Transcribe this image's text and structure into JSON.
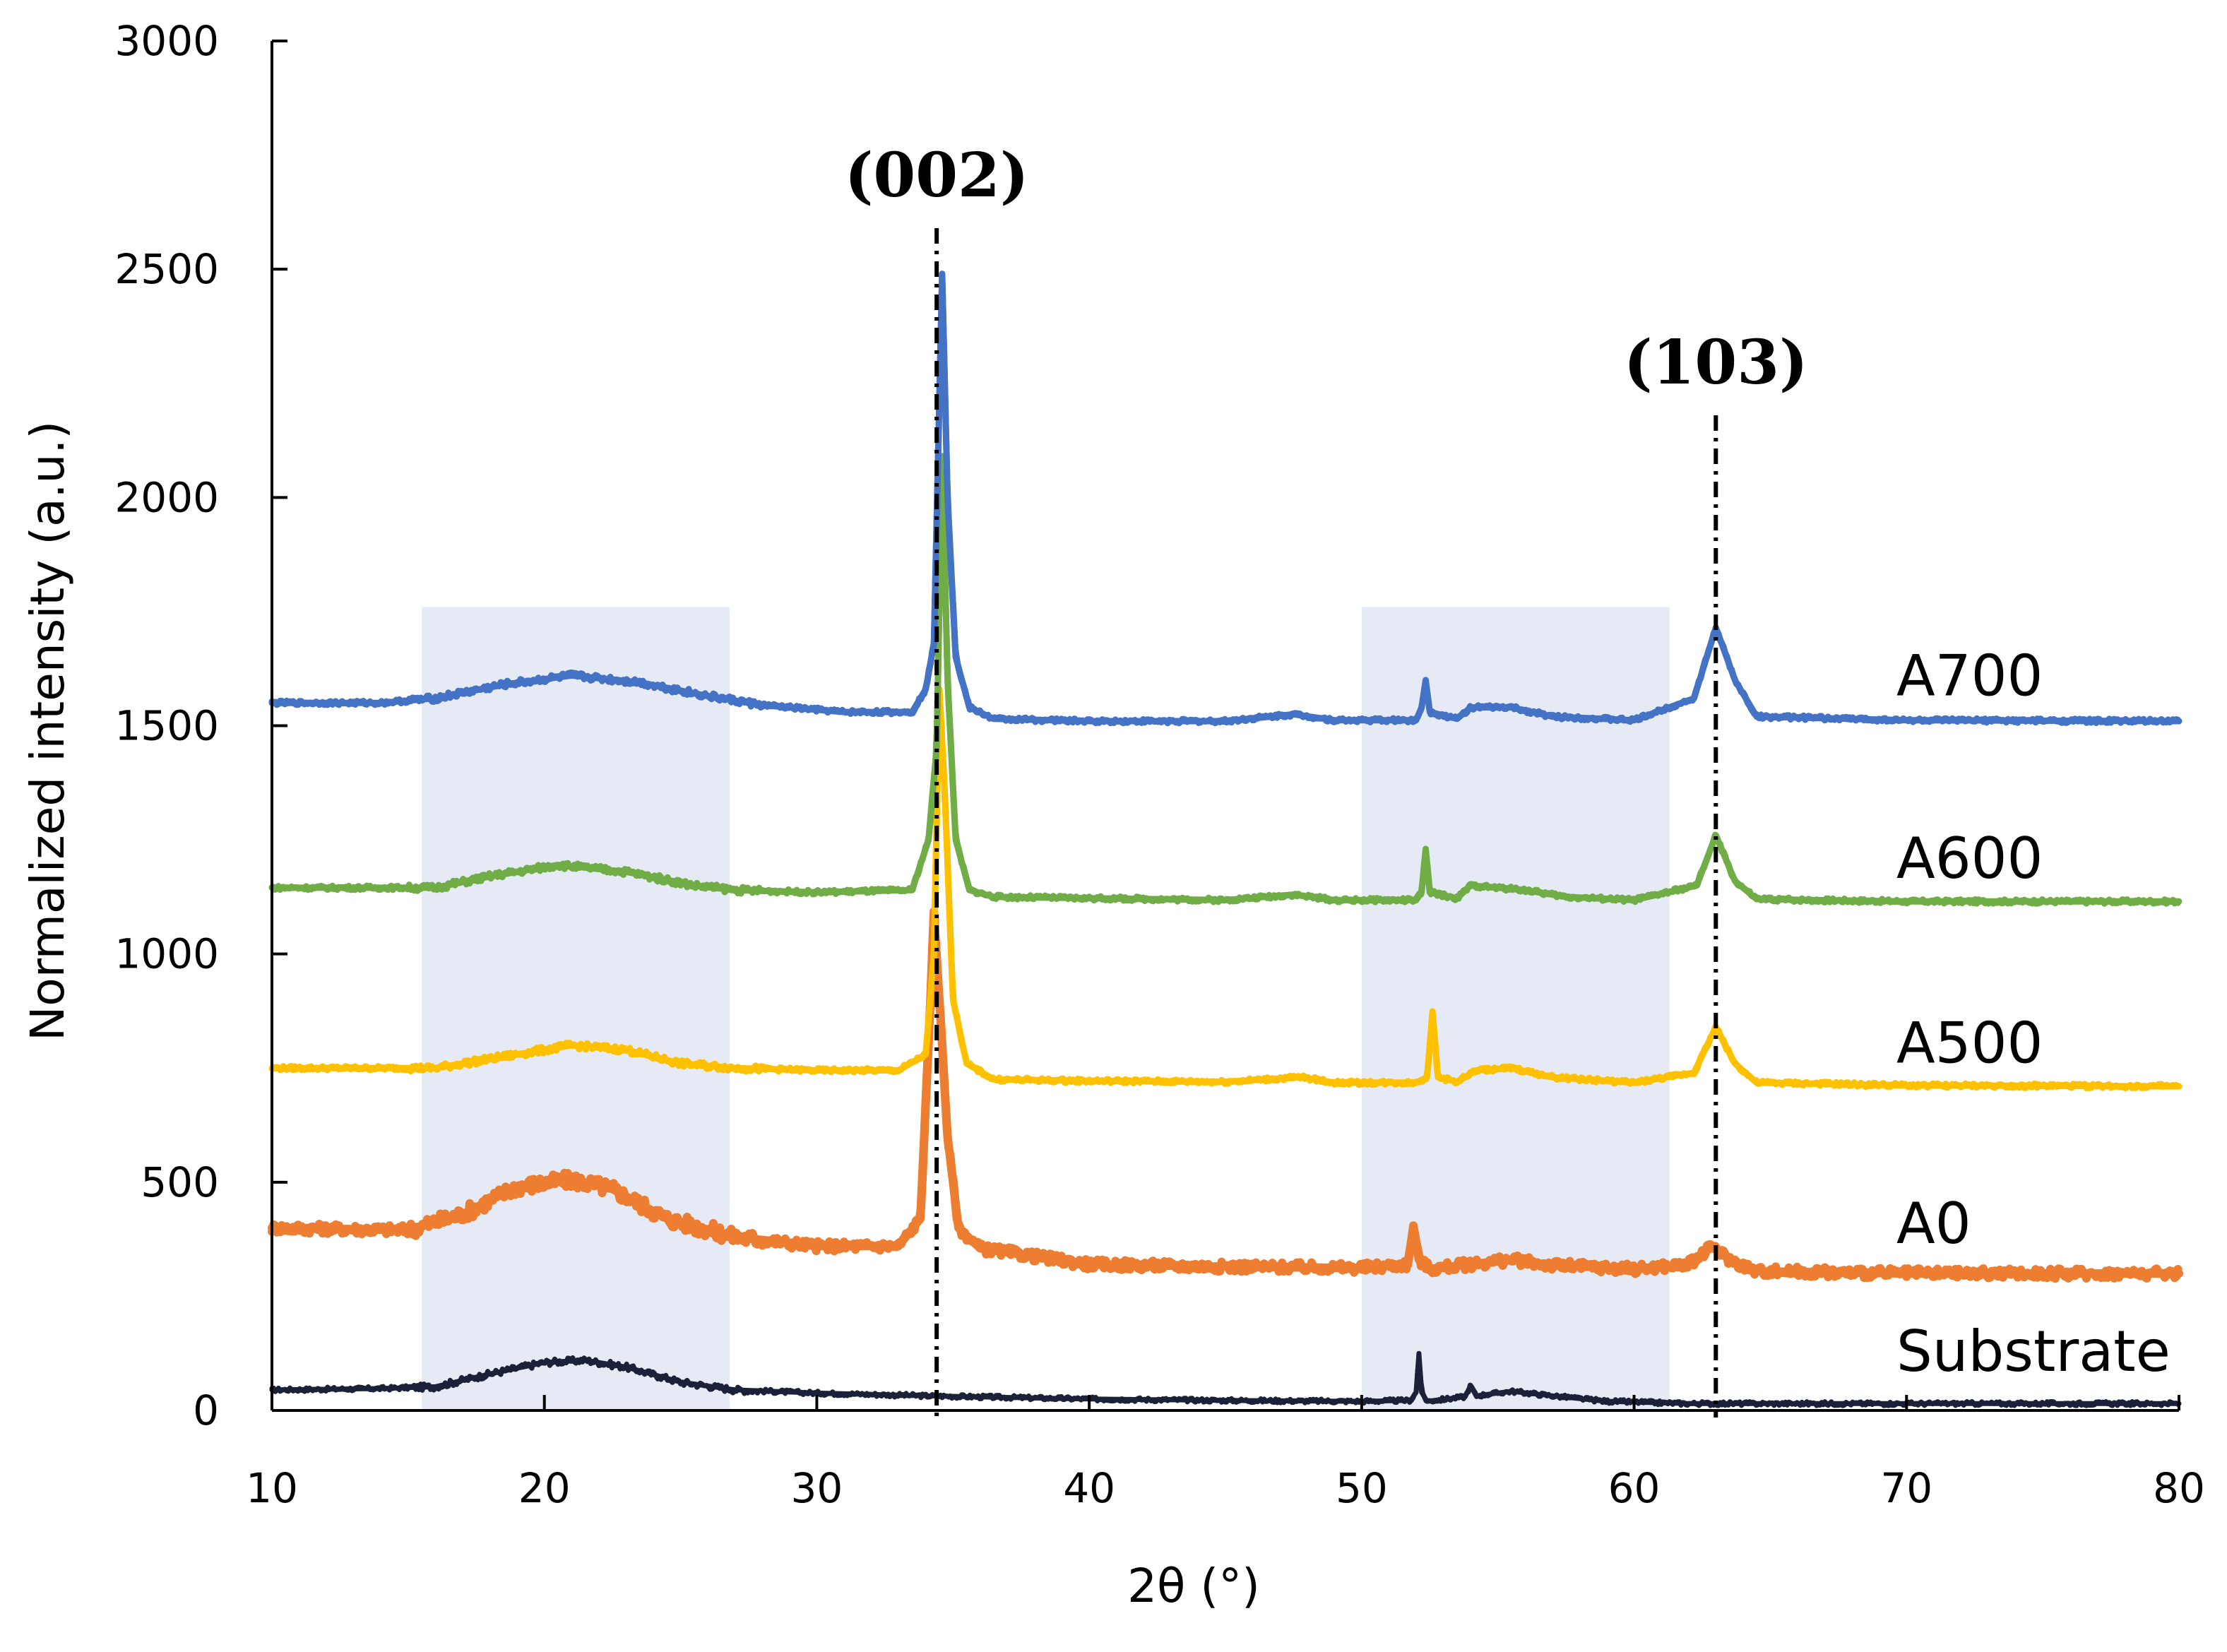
{
  "chart_data": {
    "type": "line",
    "title": "",
    "xlabel": "2θ (°)",
    "ylabel": "Normalized intensity (a.u.)",
    "xlim": [
      10,
      80
    ],
    "ylim": [
      0,
      3000
    ],
    "xticks": [
      "10",
      "20",
      "30",
      "40",
      "50",
      "60",
      "70",
      "80"
    ],
    "yticks": [
      "0",
      "500",
      "1000",
      "1500",
      "2000",
      "2500",
      "3000"
    ],
    "shaded_regions": [
      {
        "x0": 15.5,
        "x1": 26.8,
        "y0": 0,
        "y1": 1760
      },
      {
        "x0": 50.0,
        "x1": 61.3,
        "y0": 0,
        "y1": 1760
      }
    ],
    "reference_lines": [
      {
        "x": 34.4,
        "label": "(002)",
        "top": 2590
      },
      {
        "x": 63.0,
        "label": "(103)",
        "top": 2180
      }
    ],
    "series": [
      {
        "name": "Substrate",
        "label": "Substrate",
        "color": "#1b2138",
        "lw": 7,
        "label_y": 130,
        "points": [
          [
            10,
            45
          ],
          [
            14,
            48
          ],
          [
            16,
            52
          ],
          [
            18,
            80
          ],
          [
            20,
            105
          ],
          [
            21.5,
            110
          ],
          [
            23,
            95
          ],
          [
            25,
            62
          ],
          [
            27,
            45
          ],
          [
            30,
            38
          ],
          [
            34,
            32
          ],
          [
            40,
            25
          ],
          [
            45,
            22
          ],
          [
            50,
            20
          ],
          [
            51.8,
            22
          ],
          [
            52,
            40
          ],
          [
            52.1,
            125
          ],
          [
            52.2,
            40
          ],
          [
            52.4,
            20
          ],
          [
            53.8,
            30
          ],
          [
            54,
            55
          ],
          [
            54.2,
            32
          ],
          [
            55.5,
            42
          ],
          [
            57,
            32
          ],
          [
            59,
            20
          ],
          [
            62,
            15
          ],
          [
            70,
            15
          ],
          [
            80,
            15
          ]
        ]
      },
      {
        "name": "A0",
        "label": "A0",
        "color": "#ed7d31",
        "lw": 12,
        "label_y": 410,
        "points": [
          [
            10,
            400
          ],
          [
            15,
            395
          ],
          [
            17,
            430
          ],
          [
            19,
            490
          ],
          [
            21,
            505
          ],
          [
            22.5,
            485
          ],
          [
            24.5,
            420
          ],
          [
            27,
            380
          ],
          [
            30,
            360
          ],
          [
            33,
            360
          ],
          [
            33.8,
            420
          ],
          [
            34.1,
            800
          ],
          [
            34.3,
            1090
          ],
          [
            34.5,
            900
          ],
          [
            34.8,
            600
          ],
          [
            35.2,
            400
          ],
          [
            36,
            355
          ],
          [
            40,
            320
          ],
          [
            45,
            315
          ],
          [
            50,
            312
          ],
          [
            51.7,
            320
          ],
          [
            51.9,
            405
          ],
          [
            52.1,
            330
          ],
          [
            52.5,
            310
          ],
          [
            54,
            320
          ],
          [
            55.5,
            330
          ],
          [
            57,
            318
          ],
          [
            60,
            310
          ],
          [
            62,
            320
          ],
          [
            62.9,
            360
          ],
          [
            63.5,
            330
          ],
          [
            64.5,
            305
          ],
          [
            70,
            300
          ],
          [
            80,
            300
          ]
        ]
      },
      {
        "name": "A500",
        "label": "A500",
        "color": "#ffc000",
        "lw": 9,
        "label_y": 805,
        "points": [
          [
            10,
            750
          ],
          [
            16,
            750
          ],
          [
            18,
            770
          ],
          [
            21,
            800
          ],
          [
            23,
            790
          ],
          [
            25,
            760
          ],
          [
            27,
            750
          ],
          [
            30,
            745
          ],
          [
            33,
            745
          ],
          [
            34.0,
            780
          ],
          [
            34.3,
            1000
          ],
          [
            34.5,
            1580
          ],
          [
            34.7,
            1350
          ],
          [
            35.0,
            900
          ],
          [
            35.5,
            760
          ],
          [
            36.5,
            725
          ],
          [
            40,
            722
          ],
          [
            45,
            720
          ],
          [
            47.8,
            730
          ],
          [
            49,
            718
          ],
          [
            52,
            718
          ],
          [
            52.4,
            730
          ],
          [
            52.6,
            870
          ],
          [
            52.8,
            730
          ],
          [
            53.5,
            720
          ],
          [
            54.2,
            745
          ],
          [
            55.5,
            750
          ],
          [
            57,
            730
          ],
          [
            60,
            718
          ],
          [
            62.2,
            740
          ],
          [
            63,
            840
          ],
          [
            63.7,
            760
          ],
          [
            64.5,
            718
          ],
          [
            70,
            712
          ],
          [
            80,
            710
          ]
        ]
      },
      {
        "name": "A600",
        "label": "A600",
        "color": "#70ad47",
        "lw": 9,
        "label_y": 1210,
        "points": [
          [
            10,
            1145
          ],
          [
            16,
            1145
          ],
          [
            18,
            1170
          ],
          [
            20.5,
            1195
          ],
          [
            23,
            1180
          ],
          [
            25.5,
            1150
          ],
          [
            27,
            1140
          ],
          [
            30,
            1135
          ],
          [
            33.5,
            1140
          ],
          [
            34.1,
            1250
          ],
          [
            34.4,
            1450
          ],
          [
            34.6,
            2090
          ],
          [
            34.8,
            1600
          ],
          [
            35.1,
            1250
          ],
          [
            35.6,
            1140
          ],
          [
            36.5,
            1125
          ],
          [
            40,
            1122
          ],
          [
            45,
            1118
          ],
          [
            47.5,
            1130
          ],
          [
            49,
            1118
          ],
          [
            52,
            1118
          ],
          [
            52.2,
            1135
          ],
          [
            52.35,
            1230
          ],
          [
            52.5,
            1135
          ],
          [
            53.5,
            1122
          ],
          [
            54,
            1150
          ],
          [
            55,
            1145
          ],
          [
            56,
            1140
          ],
          [
            57.5,
            1125
          ],
          [
            60,
            1118
          ],
          [
            62.3,
            1150
          ],
          [
            63,
            1260
          ],
          [
            63.7,
            1160
          ],
          [
            64.5,
            1120
          ],
          [
            70,
            1115
          ],
          [
            80,
            1115
          ]
        ]
      },
      {
        "name": "A700",
        "label": "A700",
        "color": "#4472c4",
        "lw": 9,
        "label_y": 1610,
        "points": [
          [
            10,
            1550
          ],
          [
            14,
            1550
          ],
          [
            16,
            1560
          ],
          [
            18.5,
            1590
          ],
          [
            21,
            1610
          ],
          [
            23.5,
            1595
          ],
          [
            26,
            1565
          ],
          [
            28,
            1545
          ],
          [
            31,
            1530
          ],
          [
            33.5,
            1530
          ],
          [
            34.0,
            1580
          ],
          [
            34.3,
            1680
          ],
          [
            34.6,
            2490
          ],
          [
            34.8,
            2000
          ],
          [
            35.1,
            1650
          ],
          [
            35.6,
            1540
          ],
          [
            36.5,
            1515
          ],
          [
            40,
            1510
          ],
          [
            45,
            1510
          ],
          [
            47.5,
            1525
          ],
          [
            49,
            1512
          ],
          [
            52,
            1512
          ],
          [
            52.2,
            1540
          ],
          [
            52.35,
            1600
          ],
          [
            52.5,
            1530
          ],
          [
            53.5,
            1515
          ],
          [
            54,
            1540
          ],
          [
            55.5,
            1540
          ],
          [
            57,
            1520
          ],
          [
            60,
            1512
          ],
          [
            62.2,
            1560
          ],
          [
            63,
            1715
          ],
          [
            63.7,
            1600
          ],
          [
            64.5,
            1520
          ],
          [
            70,
            1512
          ],
          [
            80,
            1510
          ]
        ]
      }
    ]
  }
}
